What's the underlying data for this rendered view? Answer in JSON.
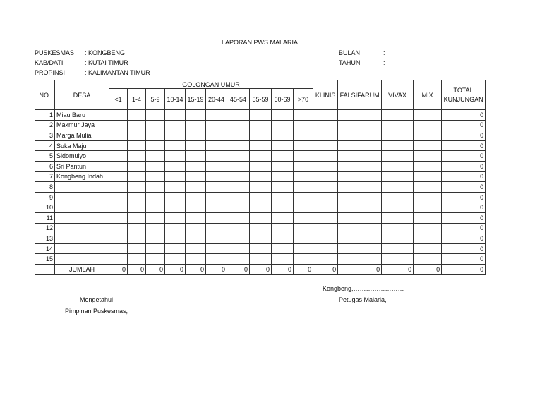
{
  "title": "LAPORAN PWS MALARIA",
  "info": {
    "puskesmas_label": "PUSKESMAS",
    "puskesmas_value": ": KONGBENG",
    "kab_label": "KAB/DATI",
    "kab_value": ": KUTAI TIMUR",
    "propinsi_label": "PROPINSI",
    "propinsi_value": ": KALIMANTAN TIMUR",
    "bulan_label": "BULAN",
    "bulan_value": ":",
    "tahun_label": "TAHUN",
    "tahun_value": ":"
  },
  "table": {
    "headers": {
      "no": "NO.",
      "desa": "DESA",
      "golongan": "GOLONGAN UMUR",
      "ages": [
        "<1",
        "1-4",
        "5-9",
        "10-14",
        "15-19",
        "20-44",
        "45-54",
        "55-59",
        "60-69",
        ">70"
      ],
      "klinis": "KLINIS",
      "falsifarum": "FALSIFARUM",
      "vivax": "VIVAX",
      "mix": "MIX",
      "total_1": "TOTAL",
      "total_2": "KUNJUNGAN"
    },
    "rows": [
      {
        "no": "1",
        "desa": "Miau Baru",
        "total": "0"
      },
      {
        "no": "2",
        "desa": "Makmur Jaya",
        "total": "0"
      },
      {
        "no": "3",
        "desa": "Marga Mulia",
        "total": "0"
      },
      {
        "no": "4",
        "desa": "Suka Maju",
        "total": "0"
      },
      {
        "no": "5",
        "desa": "Sidomulyo",
        "total": "0"
      },
      {
        "no": "6",
        "desa": "Sri Pantun",
        "total": "0"
      },
      {
        "no": "7",
        "desa": "Kongbeng Indah",
        "total": "0"
      },
      {
        "no": "8",
        "desa": "",
        "total": "0"
      },
      {
        "no": "9",
        "desa": "",
        "total": "0"
      },
      {
        "no": "10",
        "desa": "",
        "total": "0"
      },
      {
        "no": "11",
        "desa": "",
        "total": "0"
      },
      {
        "no": "12",
        "desa": "",
        "total": "0"
      },
      {
        "no": "13",
        "desa": "",
        "total": "0"
      },
      {
        "no": "14",
        "desa": "",
        "total": "0"
      },
      {
        "no": "15",
        "desa": "",
        "total": "0"
      }
    ],
    "jumlah": {
      "label": "JUMLAH",
      "values": [
        "0",
        "0",
        "0",
        "0",
        "0",
        "0",
        "0",
        "0",
        "0",
        "0",
        "0",
        "0",
        "0",
        "0",
        "0"
      ]
    }
  },
  "footer": {
    "place_date": "Kongbeng,……………………",
    "mengetahui": "Mengetahui",
    "pimpinan": "Pimpinan Puskesmas,",
    "petugas": "Petugas Malaria,"
  }
}
